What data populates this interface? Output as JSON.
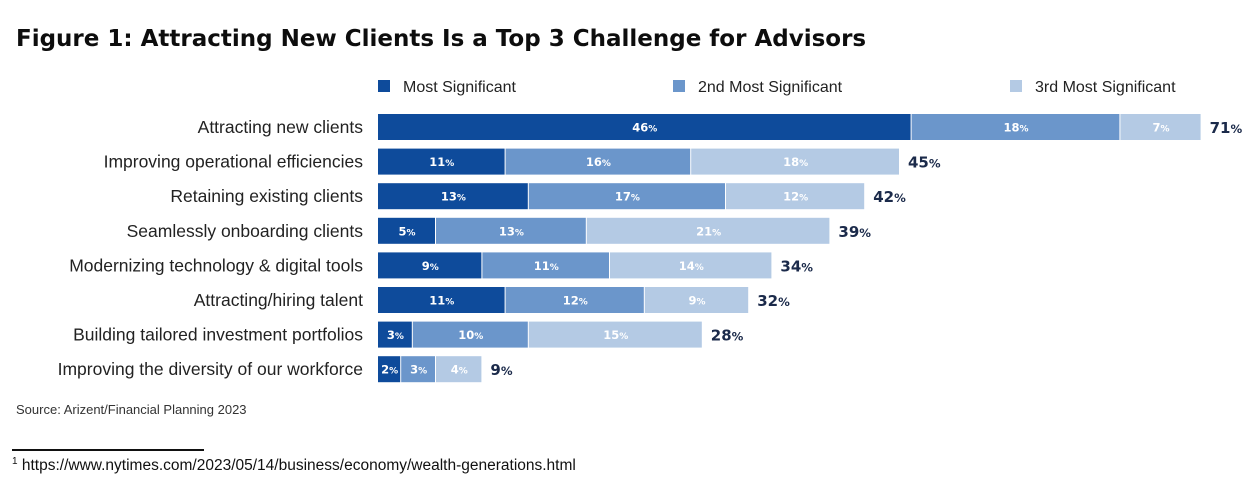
{
  "chart_data": {
    "type": "bar",
    "orientation": "horizontal",
    "stacked": true,
    "title": "Figure 1: Attracting New Clients Is a Top 3 Challenge for Advisors",
    "categories": [
      "Attracting new clients",
      "Improving operational efficiencies",
      "Retaining existing clients",
      "Seamlessly onboarding clients",
      "Modernizing technology & digital tools",
      "Attracting/hiring talent",
      "Building tailored investment portfolios",
      "Improving the diversity of our workforce"
    ],
    "series": [
      {
        "name": "Most Significant",
        "color": "#0e4b9b",
        "values": [
          46,
          11,
          13,
          5,
          9,
          11,
          3,
          2
        ]
      },
      {
        "name": "2nd Most Significant",
        "color": "#6b96cb",
        "values": [
          18,
          16,
          17,
          13,
          11,
          12,
          10,
          3
        ]
      },
      {
        "name": "3rd Most Significant",
        "color": "#b4cae4",
        "values": [
          7,
          18,
          12,
          21,
          14,
          9,
          15,
          4
        ]
      }
    ],
    "totals": [
      71,
      45,
      42,
      39,
      34,
      32,
      28,
      9
    ],
    "unit": "%",
    "legend": "top",
    "grid": false
  },
  "source": "Source: Arizent/Financial Planning 2023",
  "footnote": {
    "marker": "1",
    "text": " https://www.nytimes.com/2023/05/14/business/economy/wealth-generations.html"
  }
}
